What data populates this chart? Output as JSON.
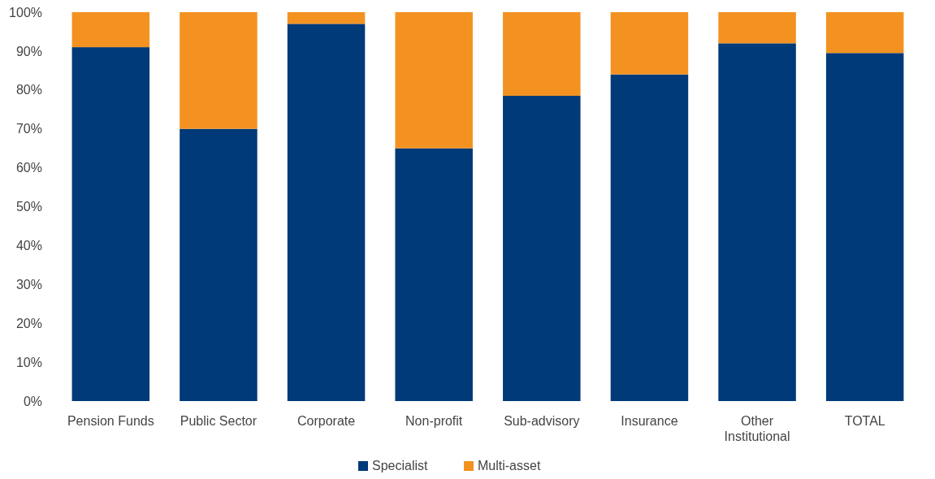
{
  "chart_data": {
    "type": "bar",
    "stacked": true,
    "categories": [
      "Pension Funds",
      "Public Sector",
      "Corporate",
      "Non-profit",
      "Sub-advisory",
      "Insurance",
      "Other Institutional",
      "TOTAL"
    ],
    "series": [
      {
        "name": "Specialist",
        "color": "#003a78",
        "values": [
          91,
          70,
          97,
          65,
          78.5,
          84,
          92,
          89.5
        ]
      },
      {
        "name": "Multi-asset",
        "color": "#f39220",
        "values": [
          9,
          30,
          3,
          35,
          21.5,
          16,
          8,
          10.5
        ]
      }
    ],
    "ylim": [
      0,
      100
    ],
    "yticks": [
      {
        "value": 0,
        "label": "0%"
      },
      {
        "value": 10,
        "label": "10%"
      },
      {
        "value": 20,
        "label": "20%"
      },
      {
        "value": 30,
        "label": "30%"
      },
      {
        "value": 40,
        "label": "40%"
      },
      {
        "value": 50,
        "label": "50%"
      },
      {
        "value": 60,
        "label": "60%"
      },
      {
        "value": 70,
        "label": "70%"
      },
      {
        "value": 80,
        "label": "80%"
      },
      {
        "value": 90,
        "label": "90%"
      },
      {
        "value": 100,
        "label": "100%"
      }
    ],
    "grid": false,
    "legend": "bottom"
  }
}
